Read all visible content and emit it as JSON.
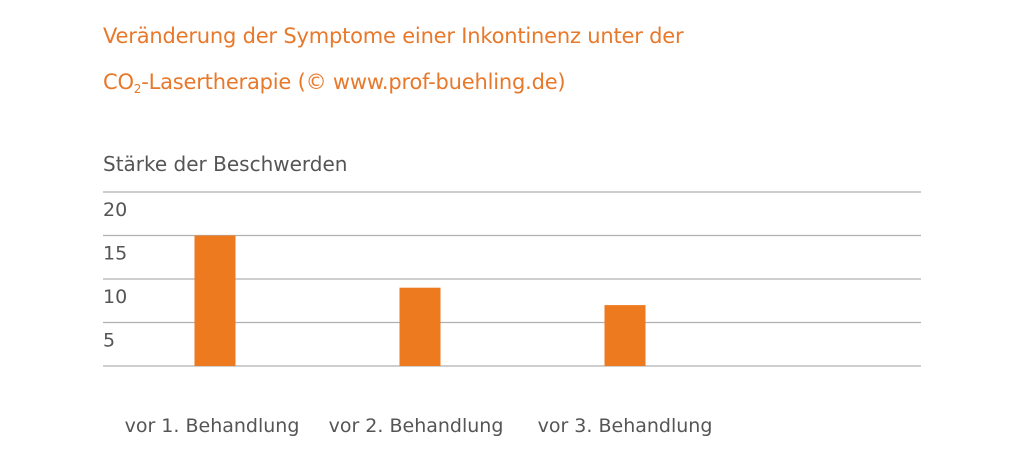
{
  "chart_data": {
    "type": "bar",
    "title_line1": "Veränderung der Symptome einer Inkontinenz unter der",
    "title_line2_prefix": "CO",
    "title_line2_sub": "2",
    "title_line2_suffix": "-Lasertherapie (© www.prof-buehling.de)",
    "ylabel": "Stärke der Beschwerden",
    "xlabel": "",
    "categories": [
      "vor 1. Behandlung",
      "vor 2. Behandlung",
      "vor 3. Behandlung"
    ],
    "values": [
      15,
      9,
      7
    ],
    "yticks": [
      "5",
      "10",
      "15",
      "20"
    ],
    "ylim": [
      0,
      20
    ],
    "grid": true,
    "bar_color": "#ee7a1f",
    "grid_color": "#b0b0b0"
  }
}
